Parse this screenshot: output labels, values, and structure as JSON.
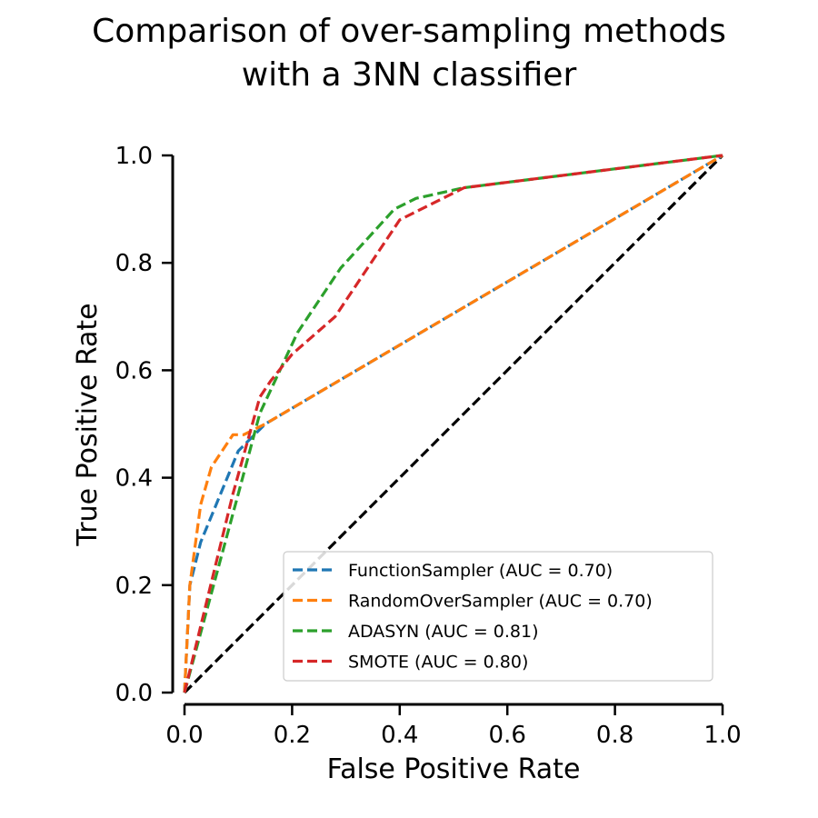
{
  "chart_data": {
    "type": "line",
    "title_lines": [
      "Comparison of over-sampling methods",
      "with a 3NN classifier"
    ],
    "xlabel": "False Positive Rate",
    "ylabel": "True Positive Rate",
    "xlim": [
      0,
      1
    ],
    "ylim": [
      0,
      1
    ],
    "xticks": [
      0.0,
      0.2,
      0.4,
      0.6,
      0.8,
      1.0
    ],
    "yticks": [
      0.0,
      0.2,
      0.4,
      0.6,
      0.8,
      1.0
    ],
    "xtick_labels": [
      "0.0",
      "0.2",
      "0.4",
      "0.6",
      "0.8",
      "1.0"
    ],
    "ytick_labels": [
      "0.0",
      "0.2",
      "0.4",
      "0.6",
      "0.8",
      "1.0"
    ],
    "grid": false,
    "legend_position": "lower-right",
    "series": [
      {
        "name": "FunctionSampler (AUC = 0.70)",
        "color": "#1f77b4",
        "x": [
          0.0,
          0.01,
          0.03,
          0.1,
          0.15,
          1.0
        ],
        "y": [
          0.0,
          0.2,
          0.28,
          0.45,
          0.5,
          1.0
        ]
      },
      {
        "name": "RandomOverSampler (AUC = 0.70)",
        "color": "#ff7f0e",
        "x": [
          0.0,
          0.01,
          0.03,
          0.05,
          0.07,
          0.09,
          0.11,
          0.15,
          1.0
        ],
        "y": [
          0.0,
          0.2,
          0.35,
          0.42,
          0.45,
          0.48,
          0.48,
          0.5,
          1.0
        ]
      },
      {
        "name": "ADASYN (AUC = 0.81)",
        "color": "#2ca02c",
        "x": [
          0.0,
          0.1,
          0.14,
          0.21,
          0.29,
          0.39,
          0.43,
          0.52,
          1.0
        ],
        "y": [
          0.0,
          0.37,
          0.52,
          0.67,
          0.79,
          0.9,
          0.92,
          0.94,
          1.0
        ]
      },
      {
        "name": "SMOTE (AUC = 0.80)",
        "color": "#d62728",
        "x": [
          0.0,
          0.09,
          0.14,
          0.16,
          0.2,
          0.28,
          0.36,
          0.4,
          0.52,
          1.0
        ],
        "y": [
          0.0,
          0.37,
          0.55,
          0.58,
          0.63,
          0.7,
          0.82,
          0.88,
          0.94,
          1.0
        ]
      },
      {
        "name": "chance",
        "color": "#000000",
        "x": [
          0.0,
          1.0
        ],
        "y": [
          0.0,
          1.0
        ]
      }
    ],
    "legend_entries": [
      "FunctionSampler (AUC = 0.70)",
      "RandomOverSampler (AUC = 0.70)",
      "ADASYN (AUC = 0.81)",
      "SMOTE (AUC = 0.80)"
    ]
  }
}
